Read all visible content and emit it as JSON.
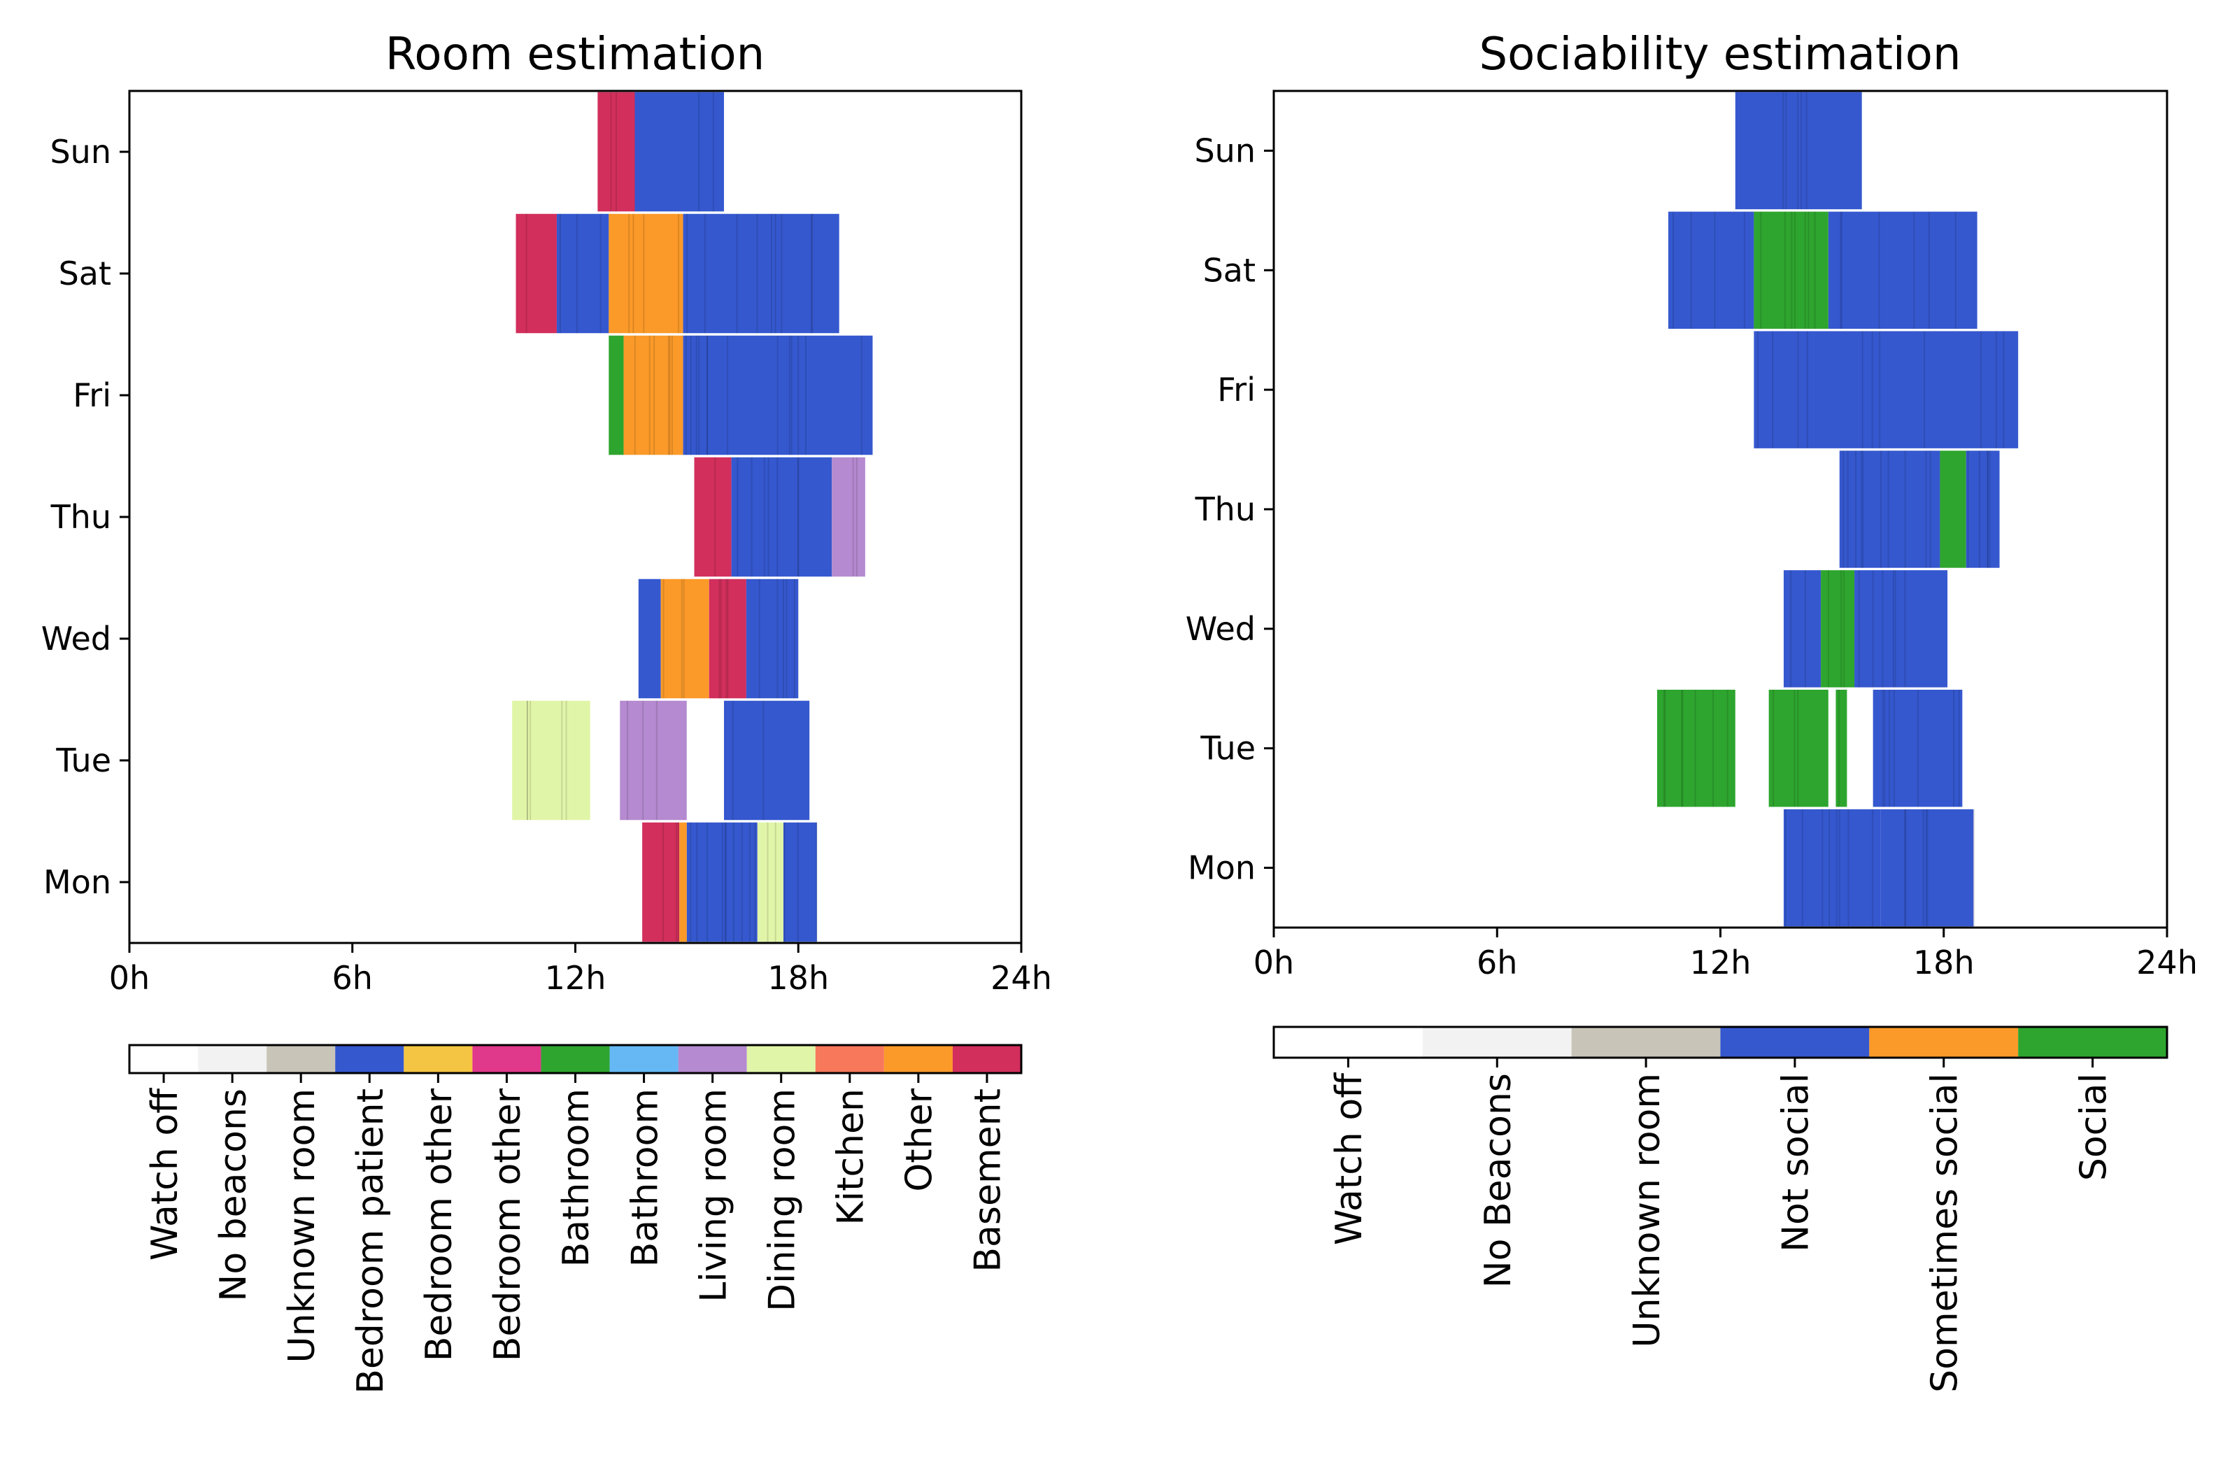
{
  "charts": [
    {
      "id": "room",
      "title": "Room estimation",
      "x_ticks": [
        "0h",
        "6h",
        "12h",
        "18h",
        "24h"
      ],
      "days": [
        "Mon",
        "Tue",
        "Wed",
        "Thu",
        "Fri",
        "Sat",
        "Sun"
      ],
      "categories": [
        {
          "label": "Watch off",
          "color": "#ffffff"
        },
        {
          "label": "No beacons",
          "color": "#f2f2f2"
        },
        {
          "label": "Unknown room",
          "color": "#c8c4b8"
        },
        {
          "label": "Bedroom patient",
          "color": "#3558cf"
        },
        {
          "label": "Bedroom other",
          "color": "#f4c542"
        },
        {
          "label": "Bedroom other",
          "color": "#e0388a"
        },
        {
          "label": "Bathroom",
          "color": "#2ea52e"
        },
        {
          "label": "Bathroom",
          "color": "#66b8f5"
        },
        {
          "label": "Living room",
          "color": "#b58ad0"
        },
        {
          "label": "Dining room",
          "color": "#e1f5a8"
        },
        {
          "label": "Kitchen",
          "color": "#f7785a"
        },
        {
          "label": "Other",
          "color": "#fb9a29"
        },
        {
          "label": "Basement",
          "color": "#d22f5c"
        }
      ]
    },
    {
      "id": "social",
      "title": "Sociability estimation",
      "x_ticks": [
        "0h",
        "6h",
        "12h",
        "18h",
        "24h"
      ],
      "days": [
        "Mon",
        "Tue",
        "Wed",
        "Thu",
        "Fri",
        "Sat",
        "Sun"
      ],
      "categories": [
        {
          "label": "Watch off",
          "color": "#ffffff"
        },
        {
          "label": "No Beacons",
          "color": "#f2f2f2"
        },
        {
          "label": "Unknown room",
          "color": "#c8c4b8"
        },
        {
          "label": "Not social",
          "color": "#3558cf"
        },
        {
          "label": "Sometimes social",
          "color": "#fb9a29"
        },
        {
          "label": "Social",
          "color": "#2ea52e"
        }
      ]
    }
  ],
  "chart_data": [
    {
      "type": "heatmap",
      "title": "Room estimation",
      "xlabel": "",
      "ylabel": "",
      "xlim": [
        0,
        24
      ],
      "x_unit": "hour of day",
      "rows": [
        "Mon",
        "Tue",
        "Wed",
        "Thu",
        "Fri",
        "Sat",
        "Sun"
      ],
      "segments": {
        "Mon": [
          [
            13.8,
            14.8,
            "Basement"
          ],
          [
            14.8,
            15.0,
            "Other"
          ],
          [
            15.0,
            16.9,
            "Bedroom patient"
          ],
          [
            16.9,
            17.6,
            "Dining room"
          ],
          [
            17.6,
            18.5,
            "Bedroom patient"
          ]
        ],
        "Tue": [
          [
            10.3,
            12.4,
            "Dining room"
          ],
          [
            13.2,
            15.0,
            "Living room"
          ],
          [
            15.0,
            15.3,
            "Watch off"
          ],
          [
            15.3,
            16.0,
            "Watch off"
          ],
          [
            16.0,
            18.3,
            "Bedroom patient"
          ]
        ],
        "Wed": [
          [
            13.7,
            14.3,
            "Bedroom patient"
          ],
          [
            14.3,
            15.6,
            "Other"
          ],
          [
            15.6,
            16.6,
            "Basement"
          ],
          [
            16.6,
            18.0,
            "Bedroom patient"
          ]
        ],
        "Thu": [
          [
            15.2,
            16.2,
            "Basement"
          ],
          [
            16.2,
            18.9,
            "Bedroom patient"
          ],
          [
            18.9,
            19.8,
            "Living room"
          ]
        ],
        "Fri": [
          [
            12.9,
            13.3,
            "Bathroom"
          ],
          [
            13.3,
            14.9,
            "Other"
          ],
          [
            14.9,
            20.0,
            "Bedroom patient"
          ]
        ],
        "Sat": [
          [
            10.4,
            11.5,
            "Basement"
          ],
          [
            11.5,
            12.9,
            "Bedroom patient"
          ],
          [
            12.9,
            14.9,
            "Other"
          ],
          [
            14.9,
            19.1,
            "Bedroom patient"
          ]
        ],
        "Sun": [
          [
            12.6,
            13.6,
            "Basement"
          ],
          [
            13.6,
            16.0,
            "Bedroom patient"
          ]
        ]
      }
    },
    {
      "type": "heatmap",
      "title": "Sociability estimation",
      "xlabel": "",
      "ylabel": "",
      "xlim": [
        0,
        24
      ],
      "x_unit": "hour of day",
      "rows": [
        "Mon",
        "Tue",
        "Wed",
        "Thu",
        "Fri",
        "Sat",
        "Sun"
      ],
      "segments": {
        "Mon": [
          [
            13.7,
            16.3,
            "Not social"
          ],
          [
            16.3,
            18.8,
            "Not social"
          ]
        ],
        "Tue": [
          [
            10.3,
            12.4,
            "Social"
          ],
          [
            13.3,
            14.9,
            "Social"
          ],
          [
            15.1,
            15.4,
            "Social"
          ],
          [
            16.1,
            18.5,
            "Not social"
          ]
        ],
        "Wed": [
          [
            13.7,
            14.7,
            "Not social"
          ],
          [
            14.7,
            15.6,
            "Social"
          ],
          [
            15.6,
            18.1,
            "Not social"
          ]
        ],
        "Thu": [
          [
            15.2,
            17.9,
            "Not social"
          ],
          [
            17.9,
            18.6,
            "Social"
          ],
          [
            18.6,
            19.5,
            "Not social"
          ]
        ],
        "Fri": [
          [
            12.9,
            14.5,
            "Not social"
          ],
          [
            14.5,
            20.0,
            "Not social"
          ]
        ],
        "Sat": [
          [
            10.6,
            12.9,
            "Not social"
          ],
          [
            12.9,
            14.9,
            "Social"
          ],
          [
            14.9,
            18.9,
            "Not social"
          ]
        ],
        "Sun": [
          [
            12.4,
            15.8,
            "Not social"
          ]
        ]
      }
    }
  ]
}
